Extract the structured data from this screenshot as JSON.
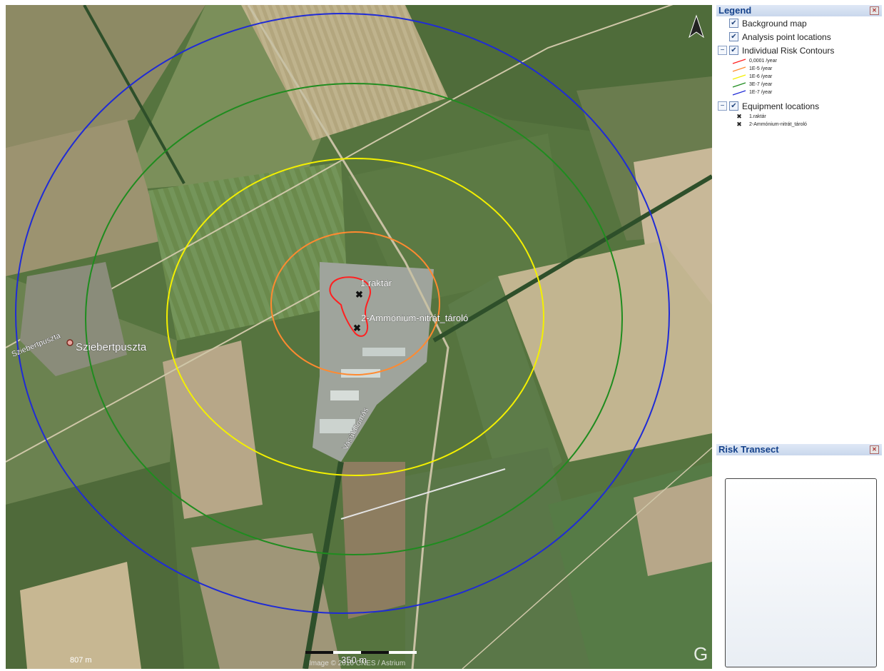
{
  "map": {
    "place_label": "Sziebertpuszta",
    "road_label_west": "Sziebertpuszta",
    "road_label_rail": "Vasútállomás",
    "equipment_labels": [
      "1.raktár",
      "2-Ammónium-nitrát_tároló"
    ],
    "scale_left": "807 m",
    "scale_bar": "350 m",
    "attribution": "Image © 2016 CNES / Astrium",
    "north_arrow": "north-arrow-icon",
    "google_logo": "G"
  },
  "legend": {
    "title": "Legend",
    "items": [
      {
        "label": "Background map",
        "checked": true
      },
      {
        "label": "Analysis point locations",
        "checked": true
      },
      {
        "label": "Individual Risk Contours",
        "checked": true,
        "expanded": true
      },
      {
        "label": "Equipment locations",
        "checked": true,
        "expanded": true
      }
    ],
    "contours": [
      {
        "label": "0,0001 /year",
        "color": "#ff2020"
      },
      {
        "label": "1E-5 /year",
        "color": "#ff8a30"
      },
      {
        "label": "1E-6 /year",
        "color": "#f4f000"
      },
      {
        "label": "3E-7 /year",
        "color": "#1f8c1f"
      },
      {
        "label": "1E-7 /year",
        "color": "#1f2bd6"
      }
    ],
    "equipment": [
      {
        "label": "1.raktár"
      },
      {
        "label": "2-Ammónium-nitrát_tároló"
      }
    ]
  },
  "transect": {
    "title": "Risk Transect"
  },
  "colors": {
    "panel_header": "#15428b",
    "contour_red": "#ff2020",
    "contour_orange": "#ff8a30",
    "contour_yellow": "#f4f000",
    "contour_green": "#1f8c1f",
    "contour_blue": "#1f2bd6"
  }
}
